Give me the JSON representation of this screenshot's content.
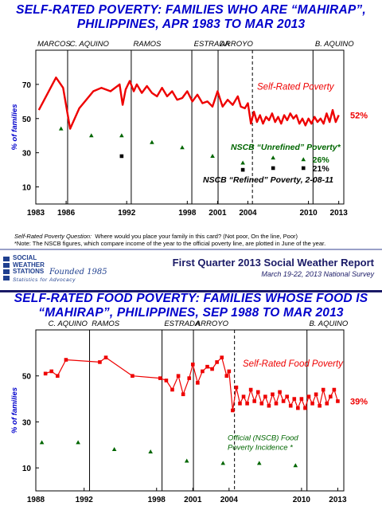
{
  "panel1": {
    "title_line1": "SELF-RATED POVERTY: FAMILIES WHO ARE “MAHIRAP”,",
    "title_line2": "PHILIPPINES, APR 1983 TO MAR 2013",
    "ylabel": "% of families",
    "footnote_question_label": "Self-Rated Poverty Question:",
    "footnote_question_text": "Where would you place your family in this card? (Not poor, On the line, Poor)",
    "footnote_note": "*Note: The NSCB figures, which compare income of the year to the official poverty line, are plotted in June of the year."
  },
  "banner": {
    "logo_line1": "SOCIAL",
    "logo_line2": "WEATHER",
    "logo_line3": "STATIONS",
    "founded": "Founded 1985",
    "tagline": "Statistics for Advocacy",
    "report_title": "First Quarter 2013 Social Weather Report",
    "report_subtitle": "March 19-22, 2013 National Survey"
  },
  "panel2": {
    "title_line1": "SELF-RATED FOOD POVERTY: FAMILIES WHOSE FOOD IS",
    "title_line2": "“MAHIRAP”, PHILIPPINES, SEP 1988 TO MAR 2013",
    "ylabel": "% of families"
  },
  "chart_data": [
    {
      "type": "line",
      "title": "SELF-RATED POVERTY: FAMILIES WHO ARE “MAHIRAP”, PHILIPPINES, APR 1983 TO MAR 2013",
      "ylabel": "% of families",
      "xlim": [
        1983,
        2013.5
      ],
      "ylim": [
        0,
        90
      ],
      "x_ticks": [
        1983,
        1986,
        1992,
        1998,
        2001,
        2004,
        2010,
        2013
      ],
      "y_ticks": [
        10,
        30,
        50,
        70
      ],
      "grid": false,
      "administrations": [
        {
          "label": "MARCOS",
          "start": 1983,
          "divider": null
        },
        {
          "label": "C. AQUINO",
          "start": 1986.2,
          "divider": 1986.15
        },
        {
          "label": "RAMOS",
          "start": 1992.5,
          "divider": 1992.45
        },
        {
          "label": "ESTRADA",
          "start": 1998.5,
          "divider": 1998.45
        },
        {
          "label": "ARROYO",
          "start": 2001.1,
          "divider": 2001.05
        },
        {
          "label": "B. AQUINO",
          "start": 2010.5,
          "divider": 2010.45
        }
      ],
      "dashed_line_x": 2004.45,
      "series": [
        {
          "name": "Self-Rated Poverty",
          "color": "#ee0000",
          "end_label": "52%",
          "points": [
            [
              1983.3,
              55
            ],
            [
              1985.0,
              74
            ],
            [
              1985.7,
              68
            ],
            [
              1986.4,
              44
            ],
            [
              1987.3,
              56
            ],
            [
              1988.7,
              66
            ],
            [
              1989.5,
              68
            ],
            [
              1990.4,
              66
            ],
            [
              1991.3,
              70
            ],
            [
              1991.6,
              58
            ],
            [
              1991.9,
              67
            ],
            [
              1992.3,
              72
            ],
            [
              1992.7,
              66
            ],
            [
              1993.0,
              70
            ],
            [
              1993.5,
              65
            ],
            [
              1994.0,
              69
            ],
            [
              1994.5,
              65
            ],
            [
              1995.0,
              63
            ],
            [
              1995.5,
              68
            ],
            [
              1996.0,
              63
            ],
            [
              1996.5,
              66
            ],
            [
              1997.0,
              61
            ],
            [
              1997.5,
              62
            ],
            [
              1998.0,
              66
            ],
            [
              1998.5,
              60
            ],
            [
              1999.0,
              64
            ],
            [
              1999.5,
              59
            ],
            [
              2000.0,
              60
            ],
            [
              2000.5,
              57
            ],
            [
              2001.0,
              66
            ],
            [
              2001.5,
              57
            ],
            [
              2002.0,
              61
            ],
            [
              2002.5,
              58
            ],
            [
              2003.0,
              63
            ],
            [
              2003.3,
              57
            ],
            [
              2003.7,
              56
            ],
            [
              2004.0,
              59
            ],
            [
              2004.3,
              47
            ],
            [
              2004.6,
              54
            ],
            [
              2004.9,
              48
            ],
            [
              2005.2,
              52
            ],
            [
              2005.5,
              47
            ],
            [
              2005.8,
              51
            ],
            [
              2006.1,
              49
            ],
            [
              2006.4,
              53
            ],
            [
              2006.7,
              48
            ],
            [
              2007.0,
              51
            ],
            [
              2007.3,
              47
            ],
            [
              2007.6,
              52
            ],
            [
              2007.9,
              49
            ],
            [
              2008.2,
              53
            ],
            [
              2008.5,
              50
            ],
            [
              2008.8,
              52
            ],
            [
              2009.1,
              47
            ],
            [
              2009.4,
              50
            ],
            [
              2009.7,
              46
            ],
            [
              2010.0,
              50
            ],
            [
              2010.3,
              47
            ],
            [
              2010.6,
              51
            ],
            [
              2010.9,
              48
            ],
            [
              2011.2,
              50
            ],
            [
              2011.5,
              47
            ],
            [
              2011.8,
              53
            ],
            [
              2012.1,
              48
            ],
            [
              2012.4,
              55
            ],
            [
              2012.7,
              48
            ],
            [
              2013.0,
              52
            ]
          ]
        },
        {
          "name": "NSCB “Unrefined” Poverty*",
          "color": "#006600",
          "marker": "triangle",
          "end_label": "26%",
          "points": [
            [
              1985.5,
              44
            ],
            [
              1988.5,
              40
            ],
            [
              1991.5,
              40
            ],
            [
              1994.5,
              36
            ],
            [
              1997.5,
              33
            ],
            [
              2000.5,
              28
            ],
            [
              2003.5,
              24
            ],
            [
              2006.5,
              27
            ],
            [
              2009.5,
              26
            ]
          ]
        },
        {
          "name": "NSCB “Refined” Poverty, 2-08-11",
          "color": "#000000",
          "marker": "square",
          "end_label": "21%",
          "points": [
            [
              1991.5,
              28
            ],
            [
              2003.5,
              20
            ],
            [
              2006.5,
              21
            ],
            [
              2009.5,
              21
            ]
          ]
        }
      ]
    },
    {
      "type": "line",
      "title": "SELF-RATED FOOD POVERTY: FAMILIES WHOSE FOOD IS “MAHIRAP”, PHILIPPINES, SEP 1988 TO MAR 2013",
      "ylabel": "% of families",
      "xlim": [
        1988,
        2013.5
      ],
      "ylim": [
        0,
        70
      ],
      "x_ticks": [
        1988,
        1992,
        1998,
        2001,
        2004,
        2010,
        2013
      ],
      "y_ticks": [
        10,
        30,
        50
      ],
      "grid": false,
      "administrations": [
        {
          "label": "C. AQUINO",
          "start": 1988.9,
          "divider": null
        },
        {
          "label": "RAMOS",
          "start": 1992.5,
          "divider": 1992.45
        },
        {
          "label": "ESTRADA",
          "start": 1998.5,
          "divider": 1998.45
        },
        {
          "label": "ARROYO",
          "start": 2001.1,
          "divider": 2001.05
        },
        {
          "label": "B. AQUINO",
          "start": 2010.5,
          "divider": 2010.45
        }
      ],
      "dashed_line_x": 2004.45,
      "series": [
        {
          "name": "Self-Rated Food Poverty",
          "color": "#ee0000",
          "marker": "square",
          "end_label": "39%",
          "points": [
            [
              1988.8,
              51
            ],
            [
              1989.3,
              52
            ],
            [
              1989.8,
              50
            ],
            [
              1990.5,
              57
            ],
            [
              1993.3,
              56
            ],
            [
              1993.8,
              58
            ],
            [
              1996.0,
              50
            ],
            [
              1998.3,
              49
            ],
            [
              1998.8,
              48
            ],
            [
              1999.3,
              44
            ],
            [
              1999.8,
              50
            ],
            [
              2000.2,
              42
            ],
            [
              2000.7,
              49
            ],
            [
              2001.0,
              55
            ],
            [
              2001.4,
              47
            ],
            [
              2001.8,
              52
            ],
            [
              2002.2,
              54
            ],
            [
              2002.6,
              53
            ],
            [
              2003.0,
              56
            ],
            [
              2003.4,
              58
            ],
            [
              2003.8,
              50
            ],
            [
              2004.0,
              52
            ],
            [
              2004.3,
              35
            ],
            [
              2004.6,
              45
            ],
            [
              2004.9,
              38
            ],
            [
              2005.2,
              41
            ],
            [
              2005.5,
              38
            ],
            [
              2005.8,
              44
            ],
            [
              2006.1,
              39
            ],
            [
              2006.4,
              43
            ],
            [
              2006.7,
              38
            ],
            [
              2007.0,
              41
            ],
            [
              2007.3,
              37
            ],
            [
              2007.6,
              42
            ],
            [
              2007.9,
              38
            ],
            [
              2008.2,
              43
            ],
            [
              2008.5,
              39
            ],
            [
              2008.8,
              41
            ],
            [
              2009.1,
              37
            ],
            [
              2009.4,
              40
            ],
            [
              2009.7,
              36
            ],
            [
              2010.0,
              40
            ],
            [
              2010.3,
              36
            ],
            [
              2010.6,
              41
            ],
            [
              2010.9,
              38
            ],
            [
              2011.2,
              42
            ],
            [
              2011.5,
              37
            ],
            [
              2011.8,
              44
            ],
            [
              2012.1,
              38
            ],
            [
              2012.4,
              41
            ],
            [
              2012.7,
              44
            ],
            [
              2013.0,
              39
            ]
          ]
        },
        {
          "name": "Official (NSCB) Food Poverty Incidence *",
          "color": "#006600",
          "marker": "triangle",
          "points": [
            [
              1988.5,
              21
            ],
            [
              1991.5,
              21
            ],
            [
              1994.5,
              18
            ],
            [
              1997.5,
              17
            ],
            [
              2000.5,
              13
            ],
            [
              2003.5,
              12
            ],
            [
              2006.5,
              12
            ],
            [
              2009.5,
              11
            ]
          ]
        }
      ]
    }
  ]
}
